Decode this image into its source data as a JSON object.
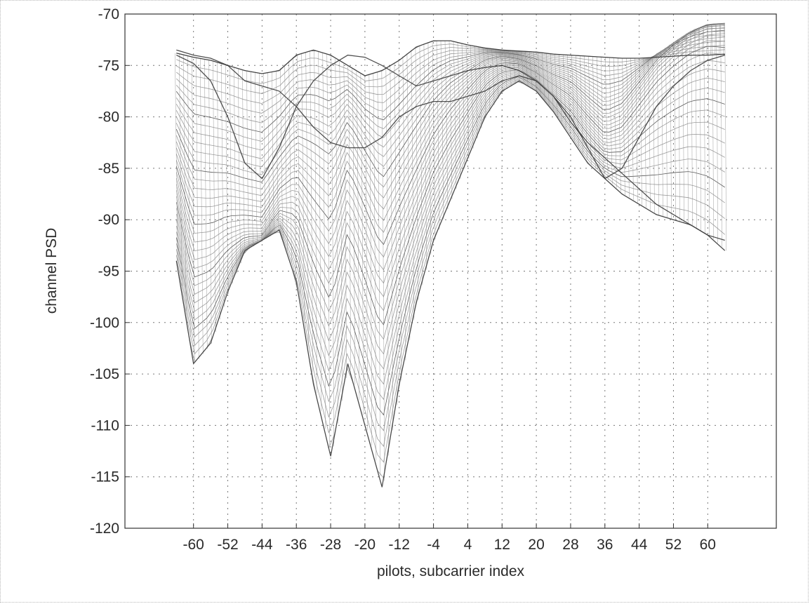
{
  "chart_data": {
    "type": "line",
    "style": "3-D mesh surface viewed from the side; many overlapping curves drawn in gray",
    "xlabel": "pilots, subcarrier index",
    "ylabel": "channel PSD",
    "xlim": [
      -76,
      76
    ],
    "ylim": [
      -120,
      -70
    ],
    "x_tick_labels": [
      "-60",
      "-52",
      "-44",
      "-36",
      "-28",
      "-20",
      "-12",
      "-4",
      "4",
      "12",
      "20",
      "28",
      "36",
      "44",
      "52",
      "60"
    ],
    "y_tick_labels": [
      "-70",
      "-75",
      "-80",
      "-85",
      "-90",
      "-95",
      "-100",
      "-105",
      "-110",
      "-115",
      "-120"
    ],
    "grid": true,
    "colors": {
      "mesh": "#8a8a8a",
      "mesh_dark": "#3c3c3c",
      "grid": "#777777",
      "axis": "#333333"
    },
    "series": [
      {
        "x": [
          -64,
          -60,
          -56,
          -52,
          -48,
          -44,
          -40,
          -36,
          -32,
          -28,
          -24,
          -20,
          -16,
          -12,
          -8,
          -4,
          0,
          4,
          8,
          12,
          16,
          20,
          24,
          28,
          32,
          36,
          40,
          44,
          48,
          52,
          56,
          60,
          64
        ],
        "values": [
          -73.5,
          -74,
          -74.3,
          -75,
          -76.5,
          -77,
          -77.5,
          -79,
          -81,
          -82.5,
          -83,
          -83,
          -82,
          -80,
          -79,
          -78.5,
          -78.5,
          -78,
          -77.5,
          -76.5,
          -76,
          -76.5,
          -78,
          -80.5,
          -82.5,
          -84,
          -85.5,
          -87,
          -88.5,
          -89.5,
          -90.5,
          -91.5,
          -92
        ]
      },
      {
        "x": [
          -64,
          -60,
          -56,
          -52,
          -48,
          -44,
          -40,
          -36,
          -32,
          -28,
          -24,
          -20,
          -16,
          -12,
          -8,
          -4,
          0,
          4,
          8,
          12,
          16,
          20,
          24,
          28,
          32,
          36,
          40,
          44,
          48,
          52,
          56,
          60,
          64
        ],
        "values": [
          -74,
          -74.8,
          -76.5,
          -80,
          -84.5,
          -86,
          -83,
          -79,
          -76.5,
          -75,
          -74,
          -74.2,
          -75,
          -76,
          -77,
          -76.5,
          -76,
          -75.5,
          -75.2,
          -75,
          -75.5,
          -76.5,
          -78,
          -80,
          -83,
          -86,
          -85,
          -82,
          -79,
          -77,
          -75.5,
          -74.5,
          -74
        ]
      },
      {
        "x": [
          -64,
          -60,
          -56,
          -52,
          -48,
          -44,
          -40,
          -36,
          -32,
          -28,
          -24,
          -20,
          -16,
          -12,
          -8,
          -4,
          0,
          4,
          8,
          12,
          16,
          20,
          24,
          28,
          32,
          36,
          40,
          44,
          48,
          52,
          56,
          60,
          64
        ],
        "values": [
          -94,
          -104,
          -102,
          -97,
          -93,
          -92,
          -91,
          -96,
          -106,
          -113,
          -104,
          -110,
          -116,
          -106,
          -98,
          -92,
          -88,
          -84,
          -80,
          -77.5,
          -76.5,
          -77.5,
          -79.5,
          -82,
          -84.5,
          -86,
          -87.5,
          -88.5,
          -89.5,
          -90,
          -90.5,
          -91.5,
          -93
        ]
      },
      {
        "x": [
          -64,
          -60,
          -56,
          -52,
          -48,
          -44,
          -40,
          -36,
          -32,
          -28,
          -24,
          -20,
          -16,
          -12,
          -8,
          -4,
          0,
          4,
          8,
          12,
          16,
          20,
          24,
          28,
          32,
          36,
          40,
          44,
          48,
          52,
          56,
          60,
          64
        ],
        "values": [
          -73.8,
          -74.2,
          -74.5,
          -75,
          -75.5,
          -75.8,
          -75.5,
          -74,
          -73.5,
          -74,
          -75,
          -76,
          -75.5,
          -74.5,
          -73.2,
          -72.6,
          -72.6,
          -73,
          -73.3,
          -73.5,
          -73.6,
          -73.7,
          -73.9,
          -74,
          -74.1,
          -74.2,
          -74.3,
          -74.3,
          -74.2,
          -74.1,
          -74,
          -74,
          -73.9
        ]
      }
    ]
  }
}
